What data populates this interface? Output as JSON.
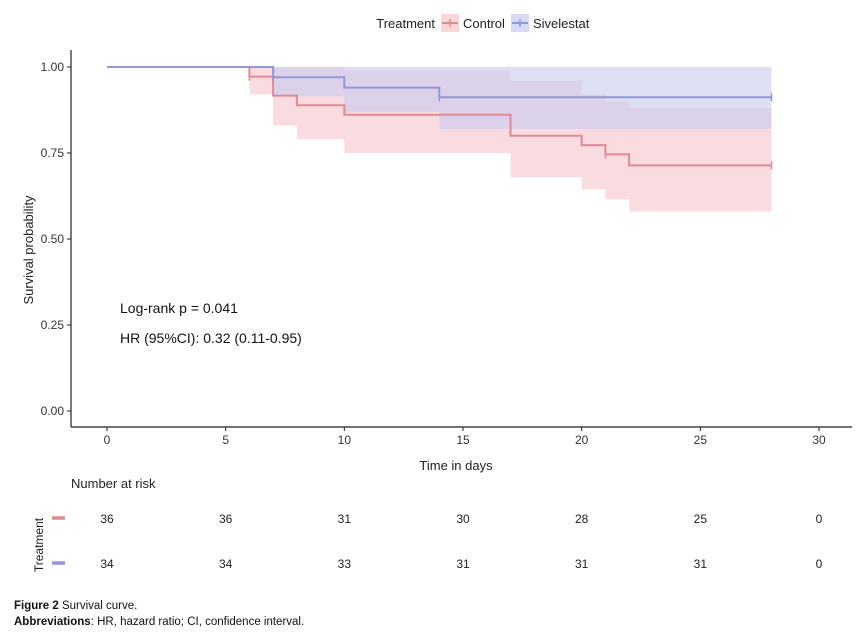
{
  "chart_data": {
    "type": "kaplan-meier",
    "xlabel": "Time in days",
    "ylabel": "Survival probability",
    "xlim": [
      0,
      30
    ],
    "ylim": [
      0,
      1
    ],
    "x_ticks": [
      0,
      5,
      10,
      15,
      20,
      25,
      30
    ],
    "y_ticks": [
      0,
      0.25,
      0.5,
      0.75,
      1.0
    ],
    "y_tick_labels": [
      "0.00",
      "0.25",
      "0.50",
      "0.75",
      "1.00"
    ],
    "legend": {
      "title": "Treatment",
      "placement": "top-center",
      "entries": [
        "Control",
        "Sivelestat"
      ]
    },
    "series": [
      {
        "name": "Control",
        "color": "#e08a94",
        "band_color": "#f7c4cb",
        "steps": [
          [
            0,
            1.0
          ],
          [
            6,
            0.972
          ],
          [
            7,
            0.917
          ],
          [
            8,
            0.889
          ],
          [
            10,
            0.861
          ],
          [
            17,
            0.8
          ],
          [
            20,
            0.773
          ],
          [
            21,
            0.746
          ],
          [
            22,
            0.714
          ],
          [
            28,
            0.714
          ]
        ],
        "ci_lower": [
          [
            0,
            1.0
          ],
          [
            6,
            0.92
          ],
          [
            7,
            0.83
          ],
          [
            8,
            0.79
          ],
          [
            10,
            0.75
          ],
          [
            17,
            0.68
          ],
          [
            20,
            0.645
          ],
          [
            21,
            0.615
          ],
          [
            22,
            0.58
          ],
          [
            28,
            0.58
          ]
        ],
        "ci_upper": [
          [
            0,
            1.0
          ],
          [
            6,
            1.0
          ],
          [
            7,
            1.0
          ],
          [
            8,
            1.0
          ],
          [
            10,
            0.99
          ],
          [
            17,
            0.96
          ],
          [
            20,
            0.92
          ],
          [
            21,
            0.9
          ],
          [
            22,
            0.88
          ],
          [
            28,
            0.88
          ]
        ],
        "censor_times": [
          6,
          21,
          28
        ]
      },
      {
        "name": "Sivelestat",
        "color": "#9297d8",
        "band_color": "#c7c9ef",
        "steps": [
          [
            0,
            1.0
          ],
          [
            7,
            0.97
          ],
          [
            10,
            0.94
          ],
          [
            14,
            0.912
          ],
          [
            28,
            0.912
          ]
        ],
        "ci_lower": [
          [
            0,
            1.0
          ],
          [
            7,
            0.915
          ],
          [
            10,
            0.87
          ],
          [
            14,
            0.82
          ],
          [
            28,
            0.82
          ]
        ],
        "ci_upper": [
          [
            0,
            1.0
          ],
          [
            7,
            1.0
          ],
          [
            10,
            1.0
          ],
          [
            14,
            1.0
          ],
          [
            28,
            1.0
          ]
        ],
        "censor_times": [
          7,
          14,
          28
        ]
      }
    ],
    "annotations": [
      "Log-rank    p = 0.041",
      "HR (95%CI): 0.32 (0.11-0.95)"
    ],
    "risk_table": {
      "title": "Number at risk",
      "ylabel": "Treatment",
      "times": [
        0,
        5,
        10,
        15,
        20,
        25,
        30
      ],
      "rows": [
        {
          "name": "Control",
          "color": "#e08a94",
          "values": [
            36,
            36,
            31,
            30,
            28,
            25,
            0
          ]
        },
        {
          "name": "Sivelestat",
          "color": "#9297d8",
          "values": [
            34,
            34,
            33,
            31,
            31,
            31,
            0
          ]
        }
      ]
    }
  },
  "caption": {
    "figure_label": "Figure 2",
    "figure_text": "Survival curve.",
    "abbrev_label": "Abbreviations",
    "abbrev_text": ": HR, hazard ratio; CI, confidence interval."
  }
}
